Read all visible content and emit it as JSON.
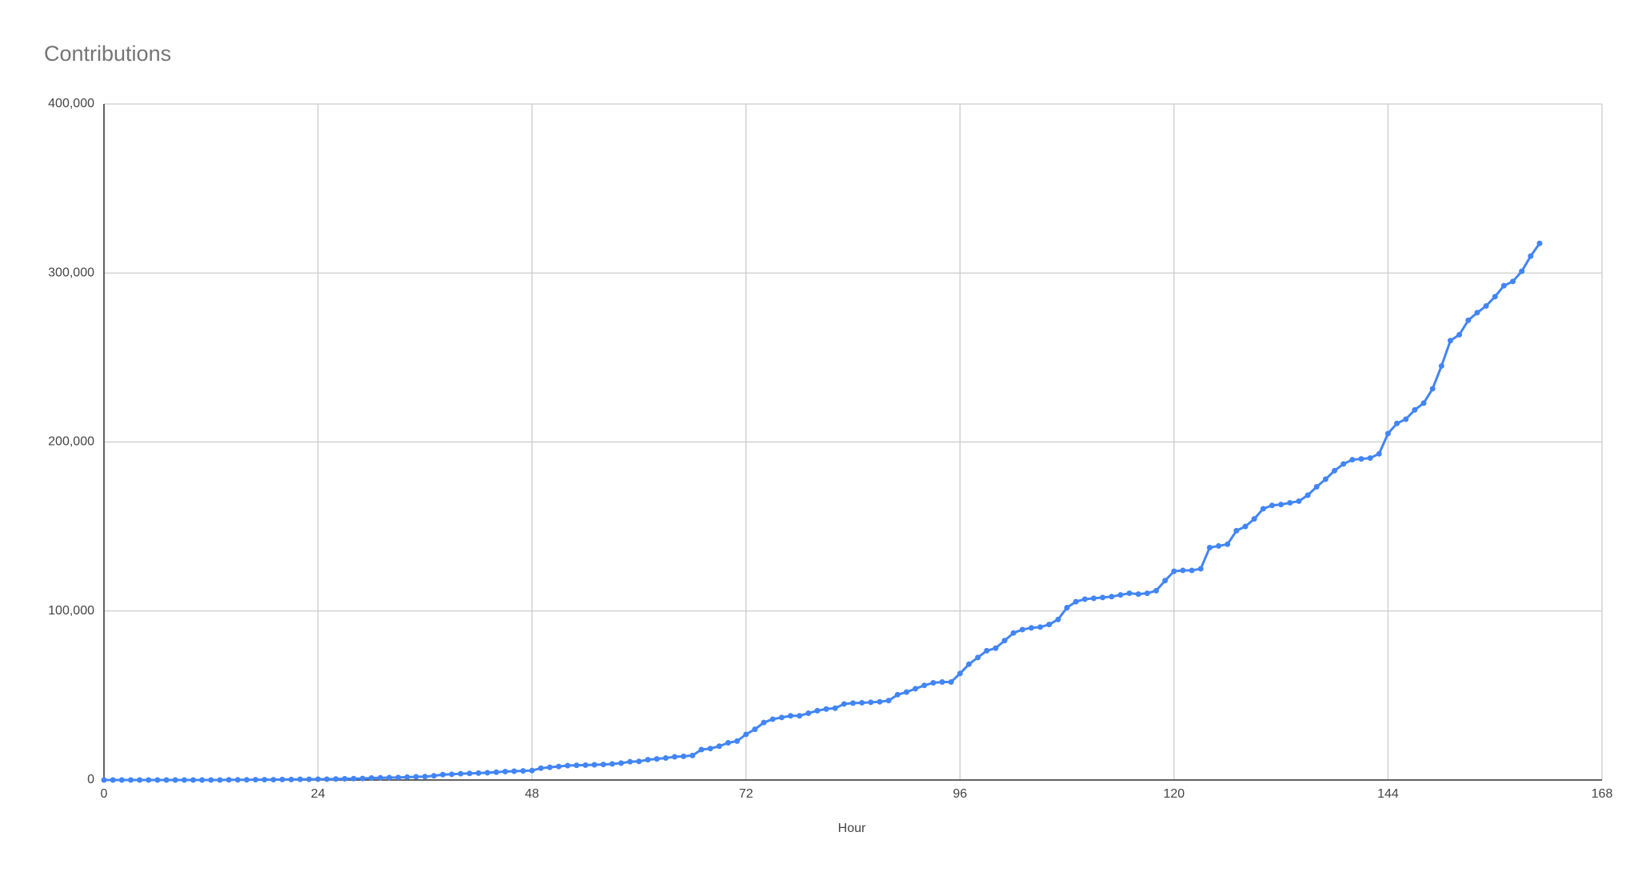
{
  "chart_data": {
    "type": "line",
    "title": "Contributions",
    "x_label": "Hour",
    "x": [
      0,
      1,
      2,
      3,
      4,
      5,
      6,
      7,
      8,
      9,
      10,
      11,
      12,
      13,
      14,
      15,
      16,
      17,
      18,
      19,
      20,
      21,
      22,
      23,
      24,
      25,
      26,
      27,
      28,
      29,
      30,
      31,
      32,
      33,
      34,
      35,
      36,
      37,
      38,
      39,
      40,
      41,
      42,
      43,
      44,
      45,
      46,
      47,
      48,
      49,
      50,
      51,
      52,
      53,
      54,
      55,
      56,
      57,
      58,
      59,
      60,
      61,
      62,
      63,
      64,
      65,
      66,
      67,
      68,
      69,
      70,
      71,
      72,
      73,
      74,
      75,
      76,
      77,
      78,
      79,
      80,
      81,
      82,
      83,
      84,
      85,
      86,
      87,
      88,
      89,
      90,
      91,
      92,
      93,
      94,
      95,
      96,
      97,
      98,
      99,
      100,
      101,
      102,
      103,
      104,
      105,
      106,
      107,
      108,
      109,
      110,
      111,
      112,
      113,
      114,
      115,
      116,
      117,
      118,
      119,
      120,
      121,
      122,
      123,
      124,
      125,
      126,
      127,
      128,
      129,
      130,
      131,
      132,
      133,
      134,
      135,
      136,
      137,
      138,
      139,
      140,
      141,
      142,
      143,
      144,
      145,
      146,
      147,
      148,
      149,
      150,
      151,
      152,
      153,
      154,
      155,
      156,
      157,
      158,
      159,
      160,
      161
    ],
    "series": [
      {
        "name": "Contributions",
        "color": "#4285f4",
        "values": [
          0,
          0,
          0,
          0,
          0,
          0,
          0,
          0,
          0,
          0,
          0,
          0,
          0,
          0,
          100,
          100,
          100,
          200,
          200,
          200,
          300,
          300,
          400,
          400,
          500,
          500,
          600,
          700,
          800,
          900,
          1200,
          1300,
          1400,
          1500,
          1700,
          1900,
          2000,
          2500,
          3200,
          3400,
          3700,
          3900,
          4100,
          4300,
          4600,
          5000,
          5200,
          5400,
          5600,
          7000,
          7500,
          8000,
          8500,
          8700,
          8800,
          9000,
          9200,
          9500,
          10000,
          10800,
          11000,
          12000,
          12500,
          13000,
          13700,
          14000,
          14500,
          18000,
          18600,
          20000,
          22000,
          23000,
          27000,
          30000,
          34000,
          36000,
          37000,
          38000,
          38000,
          39500,
          41000,
          42000,
          42500,
          45000,
          45500,
          45700,
          46000,
          46300,
          47000,
          50500,
          52000,
          54000,
          56000,
          57500,
          58000,
          58000,
          63000,
          68500,
          72500,
          76500,
          78000,
          82500,
          87000,
          89000,
          90000,
          90500,
          92000,
          95000,
          102000,
          105500,
          107000,
          107500,
          108000,
          108500,
          109500,
          110500,
          110000,
          110500,
          112000,
          118000,
          123500,
          124000,
          124000,
          125000,
          137500,
          138500,
          139500,
          147500,
          150000,
          154500,
          160500,
          162500,
          163000,
          164000,
          165000,
          168500,
          173500,
          178000,
          183000,
          187000,
          189500,
          190000,
          190500,
          193000,
          205000,
          211000,
          213500,
          219000,
          223000,
          231500,
          245000,
          260000,
          263500,
          272000,
          276500,
          280500,
          286000,
          292500,
          295000,
          301000,
          310000,
          317500
        ]
      }
    ],
    "xlim": [
      0,
      168
    ],
    "xticks": [
      0,
      24,
      48,
      72,
      96,
      120,
      144,
      168
    ],
    "ylim": [
      0,
      400000
    ],
    "yticks": [
      0,
      {
        "value": 100000,
        "label": "100,000"
      },
      {
        "value": 200000,
        "label": "200,000"
      },
      {
        "value": 300000,
        "label": "300,000"
      },
      {
        "value": 400000,
        "label": "400,000"
      }
    ],
    "grid": true
  }
}
